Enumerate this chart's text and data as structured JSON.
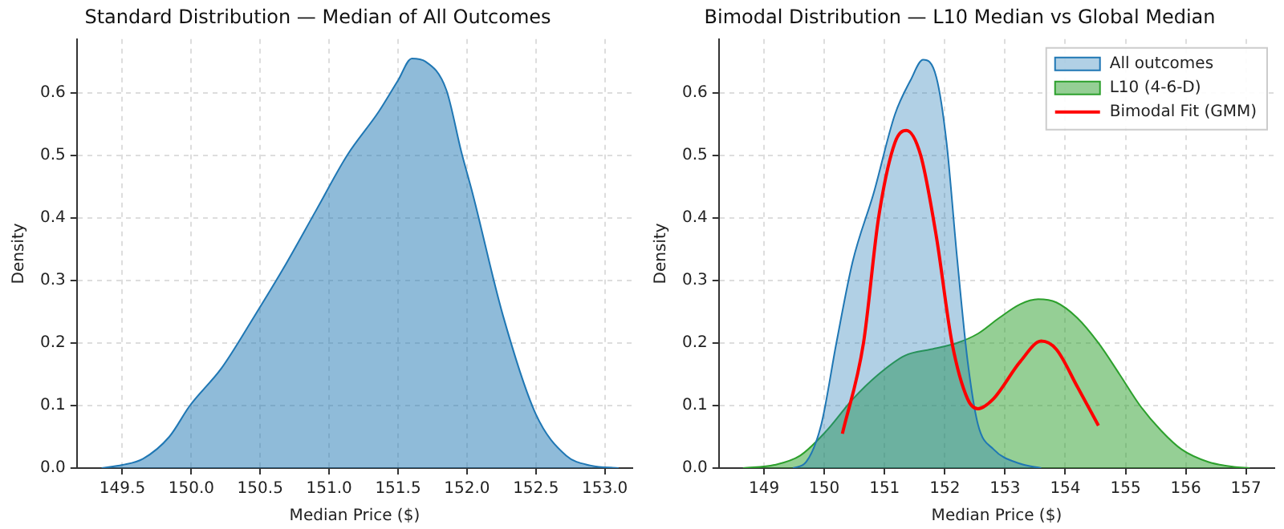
{
  "chart_data": [
    {
      "type": "area",
      "title": "Standard Distribution — Median of All Outcomes",
      "xlabel": "Median Price ($)",
      "ylabel": "Density",
      "xlim": [
        149.17,
        153.2
      ],
      "ylim": [
        0,
        0.686
      ],
      "xticks": [
        {
          "value": 149.5,
          "label": "149.5"
        },
        {
          "value": 150,
          "label": "150.0"
        },
        {
          "value": 150.5,
          "label": "150.5"
        },
        {
          "value": 151,
          "label": "151.0"
        },
        {
          "value": 151.5,
          "label": "151.5"
        },
        {
          "value": 152,
          "label": "152.0"
        },
        {
          "value": 152.5,
          "label": "152.5"
        },
        {
          "value": 153,
          "label": "153.0"
        }
      ],
      "yticks": [
        {
          "value": 0,
          "label": "0.0"
        },
        0.1,
        0.2,
        0.3,
        0.4,
        0.5,
        0.6
      ],
      "grid": true,
      "legend": false,
      "series": [
        {
          "color": "#1f77b4",
          "x": [
            149.35,
            149.5,
            149.65,
            149.84,
            149.99,
            150.22,
            150.45,
            150.67,
            150.9,
            151.13,
            151.36,
            151.5,
            151.6,
            151.7,
            151.85,
            151.96,
            152.04,
            152.26,
            152.5,
            152.72,
            152.9,
            153.1
          ],
          "values": [
            0,
            0.005,
            0.015,
            0.05,
            0.1,
            0.16,
            0.24,
            0.32,
            0.41,
            0.5,
            0.57,
            0.62,
            0.655,
            0.65,
            0.605,
            0.505,
            0.44,
            0.245,
            0.086,
            0.02,
            0.004,
            0
          ]
        }
      ]
    },
    {
      "type": "area",
      "title": "Bimodal Distribution — L10 Median vs Global Median",
      "xlabel": "Median Price ($)",
      "ylabel": "Density",
      "xlim": [
        148.25,
        157.47
      ],
      "ylim": [
        0,
        0.686
      ],
      "xticks": [
        149,
        150,
        151,
        152,
        153,
        154,
        155,
        156,
        157
      ],
      "yticks": [
        {
          "value": 0,
          "label": "0.0"
        },
        0.1,
        0.2,
        0.3,
        0.4,
        0.5,
        0.6
      ],
      "grid": true,
      "legend": "top right",
      "series": [
        {
          "name": "All outcomes",
          "color": "#1f77b4",
          "x": [
            149.48,
            149.7,
            149.95,
            150.2,
            150.47,
            150.82,
            151.17,
            151.43,
            151.64,
            151.86,
            152.03,
            152.2,
            152.38,
            152.55,
            152.81,
            153.25,
            153.6
          ],
          "values": [
            0,
            0.01,
            0.07,
            0.2,
            0.33,
            0.44,
            0.565,
            0.62,
            0.653,
            0.625,
            0.52,
            0.34,
            0.17,
            0.07,
            0.03,
            0.007,
            0
          ]
        },
        {
          "name": "L10 (4-6-D)",
          "color": "#2ca02c",
          "x": [
            148.65,
            149.17,
            149.6,
            150.04,
            150.47,
            150.9,
            151.34,
            151.77,
            152.2,
            152.55,
            152.9,
            153.25,
            153.55,
            153.85,
            154.2,
            154.55,
            154.9,
            155.24,
            155.59,
            155.93,
            156.37,
            156.8,
            157.06
          ],
          "values": [
            0,
            0.005,
            0.02,
            0.06,
            0.11,
            0.15,
            0.18,
            0.19,
            0.2,
            0.215,
            0.24,
            0.262,
            0.27,
            0.265,
            0.24,
            0.2,
            0.15,
            0.1,
            0.06,
            0.03,
            0.01,
            0.002,
            0
          ]
        },
        {
          "name": "Bimodal Fit (GMM)",
          "type": "line",
          "color": "#ff0000",
          "x": [
            150.3,
            150.65,
            150.9,
            151.17,
            151.36,
            151.6,
            151.86,
            152.12,
            152.38,
            152.55,
            152.8,
            153.25,
            153.6,
            153.85,
            154.2,
            154.55
          ],
          "values": [
            0.055,
            0.2,
            0.4,
            0.52,
            0.54,
            0.5,
            0.37,
            0.2,
            0.11,
            0.095,
            0.11,
            0.17,
            0.203,
            0.19,
            0.13,
            0.068
          ]
        }
      ]
    }
  ]
}
